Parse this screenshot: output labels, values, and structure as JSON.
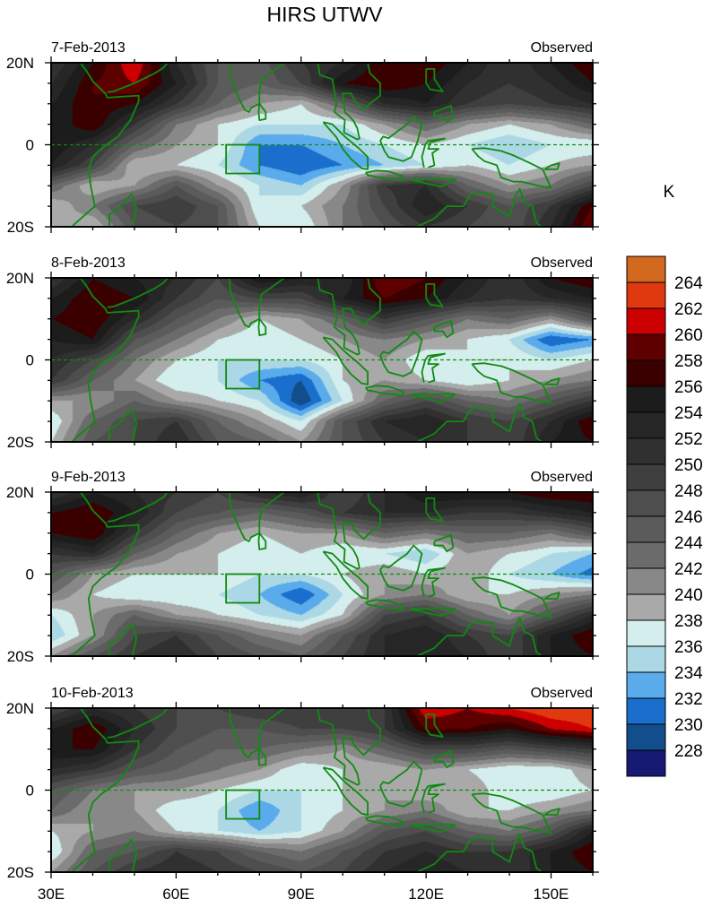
{
  "chart_data": {
    "type": "heatmap",
    "title": "HIRS UTWV",
    "units": "K",
    "x": [
      30,
      40,
      50,
      60,
      70,
      80,
      90,
      100,
      110,
      120,
      130,
      140,
      150,
      160
    ],
    "y": [
      20,
      15,
      10,
      5,
      0,
      -5,
      -10,
      -15,
      -20
    ],
    "xlim": [
      30,
      160
    ],
    "ylim": [
      -20,
      20
    ],
    "x_ticks": [
      30,
      60,
      90,
      120,
      150
    ],
    "x_tick_labels": [
      "30E",
      "60E",
      "90E",
      "120E",
      "150E"
    ],
    "y_ticks": [
      20,
      0,
      -20
    ],
    "y_tick_labels": [
      "20N",
      "0",
      "20S"
    ],
    "colorbar": {
      "levels": [
        264,
        262,
        260,
        258,
        256,
        254,
        252,
        250,
        248,
        246,
        244,
        242,
        240,
        238,
        236,
        234,
        232,
        230,
        228
      ],
      "colors_top_to_bottom": [
        "#d2691e",
        "#e0380f",
        "#cc0000",
        "#5e0000",
        "#3a0000",
        "#1c1c1c",
        "#262626",
        "#303030",
        "#3f3f3f",
        "#4e4e4e",
        "#5b5b5b",
        "#6b6b6b",
        "#888888",
        "#a9a9a9",
        "#d4eeee",
        "#acd8e6",
        "#5aabeb",
        "#1a6fcc",
        "#124e8c",
        "#161a72"
      ],
      "label": "K"
    },
    "box_region": {
      "lon": [
        72,
        80
      ],
      "lat": [
        -7,
        0
      ]
    },
    "panels": [
      {
        "date": "7-Feb-2013",
        "label": "Observed",
        "values": [
          [
            250,
            256,
            262,
            252,
            246,
            245,
            250,
            252,
            258,
            258,
            254,
            250,
            254,
            258
          ],
          [
            252,
            258,
            260,
            254,
            246,
            244,
            248,
            256,
            258,
            256,
            252,
            250,
            252,
            256
          ],
          [
            254,
            258,
            256,
            250,
            244,
            240,
            238,
            244,
            252,
            254,
            250,
            248,
            250,
            252
          ],
          [
            254,
            258,
            250,
            242,
            238,
            236,
            236,
            236,
            240,
            244,
            240,
            238,
            240,
            244
          ],
          [
            256,
            252,
            244,
            240,
            238,
            232,
            232,
            234,
            236,
            238,
            236,
            234,
            236,
            236
          ],
          [
            254,
            248,
            238,
            238,
            236,
            232,
            230,
            232,
            234,
            236,
            238,
            236,
            238,
            240
          ],
          [
            244,
            238,
            240,
            246,
            240,
            236,
            234,
            240,
            250,
            252,
            244,
            240,
            242,
            248
          ],
          [
            238,
            242,
            248,
            250,
            246,
            236,
            238,
            242,
            248,
            254,
            250,
            246,
            250,
            258
          ],
          [
            240,
            238,
            246,
            248,
            246,
            238,
            236,
            242,
            246,
            250,
            248,
            246,
            252,
            260
          ]
        ]
      },
      {
        "date": "8-Feb-2013",
        "label": "Observed",
        "values": [
          [
            250,
            256,
            254,
            252,
            248,
            256,
            254,
            252,
            260,
            258,
            254,
            250,
            256,
            258
          ],
          [
            254,
            258,
            256,
            250,
            246,
            248,
            248,
            254,
            258,
            256,
            252,
            250,
            252,
            254
          ],
          [
            256,
            258,
            252,
            246,
            242,
            238,
            240,
            244,
            250,
            246,
            242,
            244,
            240,
            246
          ],
          [
            254,
            256,
            246,
            242,
            238,
            236,
            238,
            240,
            242,
            240,
            238,
            236,
            230,
            232
          ],
          [
            252,
            248,
            242,
            238,
            236,
            236,
            236,
            238,
            240,
            236,
            238,
            238,
            236,
            238
          ],
          [
            250,
            244,
            240,
            236,
            236,
            232,
            230,
            238,
            240,
            238,
            236,
            238,
            240,
            242
          ],
          [
            240,
            240,
            244,
            240,
            238,
            236,
            228,
            236,
            244,
            248,
            244,
            242,
            246,
            250
          ],
          [
            236,
            244,
            248,
            250,
            244,
            240,
            236,
            246,
            252,
            254,
            250,
            248,
            252,
            258
          ],
          [
            238,
            246,
            248,
            252,
            246,
            244,
            240,
            246,
            250,
            252,
            250,
            248,
            254,
            256
          ]
        ]
      },
      {
        "date": "9-Feb-2013",
        "label": "Observed",
        "values": [
          [
            250,
            254,
            252,
            250,
            248,
            252,
            254,
            248,
            252,
            256,
            256,
            256,
            258,
            258
          ],
          [
            256,
            258,
            254,
            248,
            246,
            244,
            246,
            250,
            252,
            252,
            250,
            250,
            252,
            254
          ],
          [
            256,
            258,
            250,
            244,
            240,
            238,
            240,
            240,
            244,
            242,
            244,
            244,
            242,
            246
          ],
          [
            250,
            252,
            244,
            240,
            238,
            236,
            238,
            236,
            236,
            234,
            240,
            238,
            236,
            234
          ],
          [
            246,
            240,
            238,
            238,
            238,
            236,
            236,
            238,
            240,
            238,
            240,
            236,
            234,
            231
          ],
          [
            242,
            238,
            236,
            236,
            236,
            234,
            230,
            236,
            240,
            242,
            238,
            238,
            240,
            242
          ],
          [
            236,
            240,
            244,
            240,
            238,
            236,
            234,
            238,
            248,
            250,
            244,
            240,
            246,
            252
          ],
          [
            234,
            240,
            248,
            250,
            246,
            242,
            240,
            246,
            252,
            254,
            250,
            248,
            254,
            258
          ],
          [
            240,
            246,
            250,
            252,
            248,
            246,
            244,
            248,
            252,
            254,
            252,
            248,
            254,
            256
          ]
        ]
      },
      {
        "date": "10-Feb-2013",
        "label": "Observed",
        "values": [
          [
            248,
            252,
            250,
            248,
            248,
            250,
            250,
            248,
            250,
            262,
            260,
            262,
            264,
            264
          ],
          [
            254,
            258,
            252,
            248,
            246,
            246,
            248,
            248,
            250,
            258,
            258,
            256,
            260,
            262
          ],
          [
            256,
            256,
            250,
            246,
            244,
            244,
            242,
            240,
            244,
            248,
            248,
            246,
            248,
            250
          ],
          [
            252,
            250,
            246,
            244,
            242,
            240,
            236,
            238,
            238,
            240,
            238,
            236,
            236,
            240
          ],
          [
            246,
            242,
            240,
            240,
            238,
            236,
            236,
            238,
            240,
            238,
            240,
            236,
            236,
            238
          ],
          [
            244,
            240,
            240,
            236,
            236,
            232,
            236,
            238,
            240,
            242,
            238,
            238,
            240,
            242
          ],
          [
            238,
            240,
            242,
            238,
            236,
            234,
            236,
            240,
            246,
            248,
            244,
            242,
            246,
            254
          ],
          [
            236,
            244,
            246,
            250,
            248,
            244,
            242,
            246,
            250,
            252,
            250,
            250,
            254,
            258
          ],
          [
            240,
            246,
            250,
            252,
            250,
            248,
            246,
            248,
            252,
            254,
            252,
            250,
            254,
            256
          ]
        ]
      }
    ]
  },
  "colors": {
    "coastline": "#108a10",
    "equator": "#108a10"
  }
}
